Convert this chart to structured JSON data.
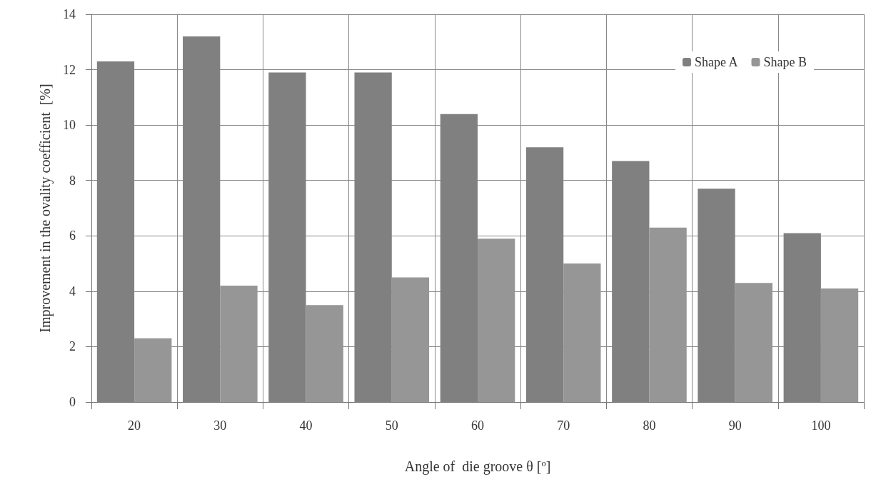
{
  "chart_data": {
    "type": "bar",
    "xlabel": "Angle of  die groove θ [º]",
    "ylabel": "Improvement in the ovality coefficient  [%]",
    "categories": [
      "20",
      "30",
      "40",
      "50",
      "60",
      "70",
      "80",
      "90",
      "100"
    ],
    "series": [
      {
        "name": "Shape A",
        "color": "#808080",
        "values": [
          12.3,
          13.2,
          11.9,
          11.9,
          10.4,
          9.2,
          8.7,
          7.7,
          6.1
        ]
      },
      {
        "name": "Shape B",
        "color": "#969696",
        "values": [
          2.3,
          4.2,
          3.5,
          4.5,
          5.9,
          5.0,
          6.3,
          4.3,
          4.1
        ]
      }
    ],
    "ylim": [
      0,
      14
    ],
    "yticks": [
      0,
      2,
      4,
      6,
      8,
      10,
      12,
      14
    ],
    "grid": true,
    "legend": "top right"
  }
}
